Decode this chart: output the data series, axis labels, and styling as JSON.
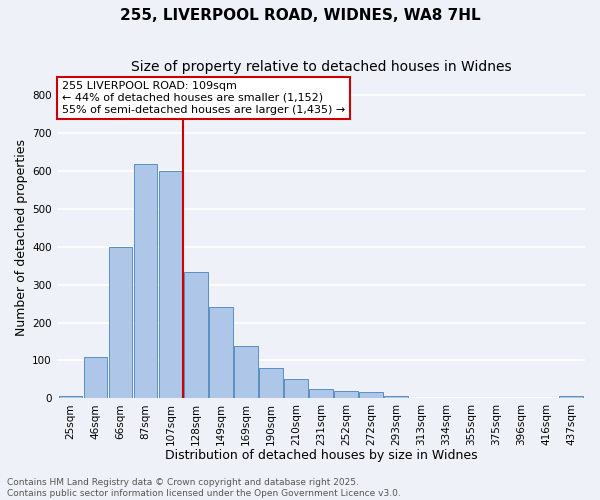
{
  "title1": "255, LIVERPOOL ROAD, WIDNES, WA8 7HL",
  "title2": "Size of property relative to detached houses in Widnes",
  "xlabel": "Distribution of detached houses by size in Widnes",
  "ylabel": "Number of detached properties",
  "bar_labels": [
    "25sqm",
    "46sqm",
    "66sqm",
    "87sqm",
    "107sqm",
    "128sqm",
    "149sqm",
    "169sqm",
    "190sqm",
    "210sqm",
    "231sqm",
    "252sqm",
    "272sqm",
    "293sqm",
    "313sqm",
    "334sqm",
    "355sqm",
    "375sqm",
    "396sqm",
    "416sqm",
    "437sqm"
  ],
  "bar_values": [
    7,
    110,
    400,
    620,
    600,
    335,
    240,
    138,
    80,
    52,
    25,
    20,
    17,
    5,
    0,
    0,
    0,
    0,
    0,
    0,
    7
  ],
  "bar_color": "#aec6e8",
  "bar_edge_color": "#5a8fc2",
  "vline_x_index": 4,
  "vline_color": "#cc0000",
  "annotation_text": "255 LIVERPOOL ROAD: 109sqm\n← 44% of detached houses are smaller (1,152)\n55% of semi-detached houses are larger (1,435) →",
  "annotation_box_color": "#ffffff",
  "annotation_box_edge": "#cc0000",
  "ylim": [
    0,
    850
  ],
  "yticks": [
    0,
    100,
    200,
    300,
    400,
    500,
    600,
    700,
    800
  ],
  "background_color": "#eef2f8",
  "grid_color": "#ffffff",
  "footer_text": "Contains HM Land Registry data © Crown copyright and database right 2025.\nContains public sector information licensed under the Open Government Licence v3.0.",
  "title_fontsize": 11,
  "subtitle_fontsize": 10,
  "label_fontsize": 9,
  "tick_fontsize": 7.5,
  "footer_fontsize": 6.5,
  "annotation_fontsize": 8
}
